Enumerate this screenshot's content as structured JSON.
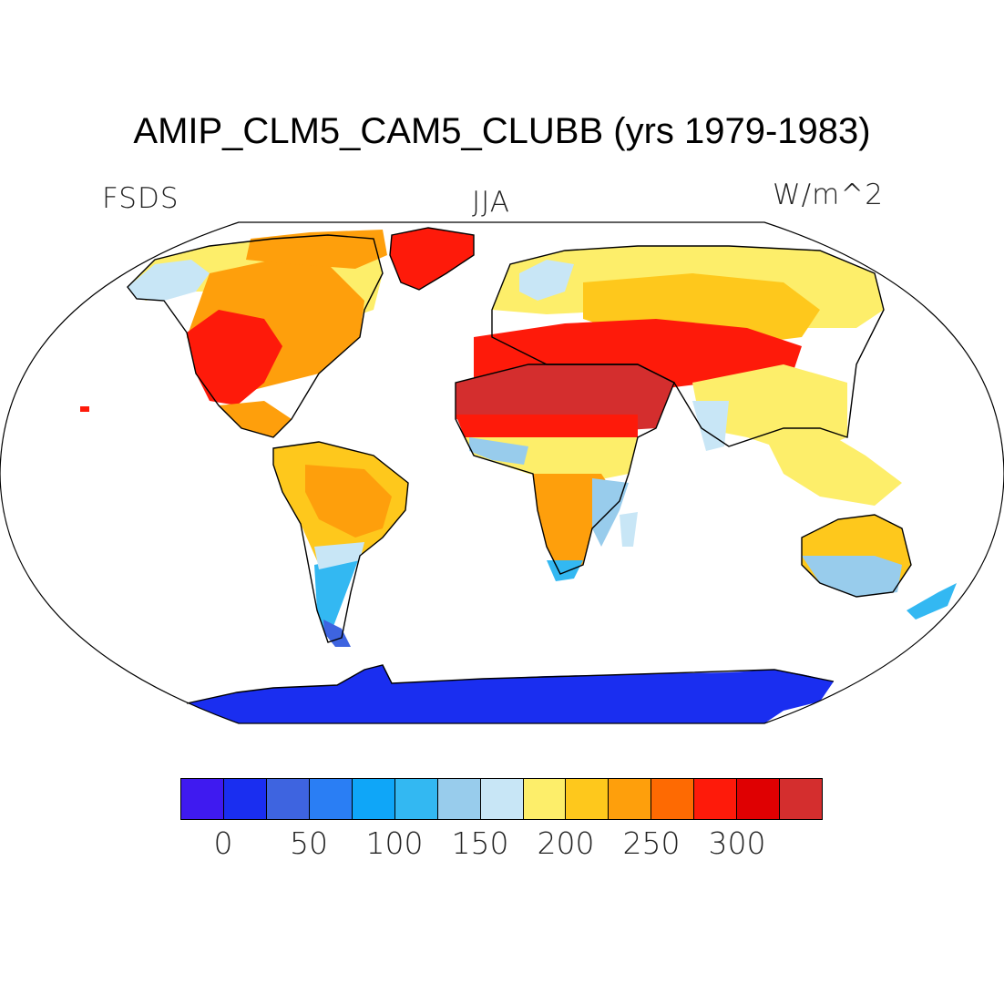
{
  "header": {
    "title": "AMIP_CLM5_CAM5_CLUBB (yrs 1979-1983)",
    "left_label": "FSDS",
    "center_label": "JJA",
    "units_label": "W/m^2"
  },
  "colorbar": {
    "colors": [
      "#3f1af0",
      "#1a2ef0",
      "#3e64e0",
      "#2a7ef4",
      "#0fa6f8",
      "#33b8f2",
      "#98ccec",
      "#c8e6f6",
      "#fdee6a",
      "#fec81c",
      "#fe9f0c",
      "#fe6a02",
      "#fe1a0a",
      "#df0002",
      "#d42e2e"
    ],
    "tick_labels": [
      "0",
      "50",
      "100",
      "150",
      "200",
      "250",
      "300"
    ],
    "tick_positions": [
      0,
      2,
      4,
      6,
      8,
      10,
      12
    ]
  },
  "map": {
    "projection": "Robinson",
    "variable": "FSDS",
    "season": "JJA"
  }
}
